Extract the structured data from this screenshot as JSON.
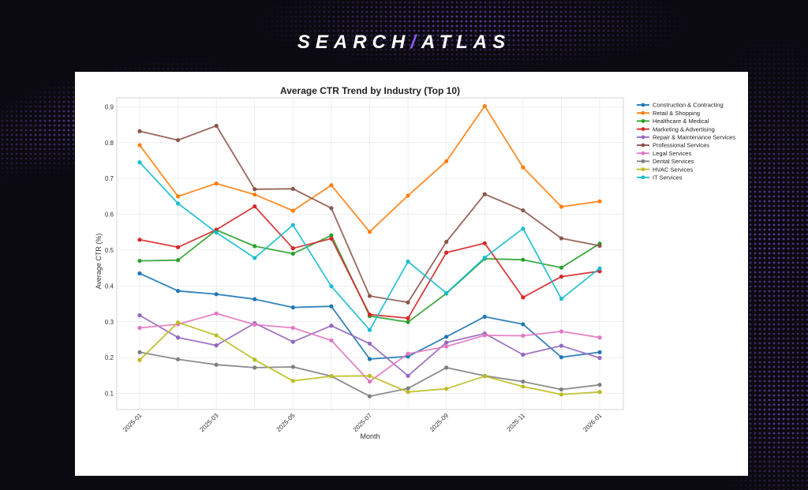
{
  "brand": {
    "part1": "SEARCH",
    "slash": "/",
    "part2": "ATLAS"
  },
  "chart_data": {
    "type": "line",
    "title": "Average CTR Trend by Industry (Top 10)",
    "xlabel": "Month",
    "ylabel": "Average CTR (%)",
    "ylim": [
      0.055,
      0.925
    ],
    "yticks": [
      0.1,
      0.2,
      0.3,
      0.4,
      0.5,
      0.6,
      0.7,
      0.8,
      0.9
    ],
    "x": [
      "2025-01",
      "2025-02",
      "2025-03",
      "2025-04",
      "2025-05",
      "2025-06",
      "2025-07",
      "2025-08",
      "2025-09",
      "2025-10",
      "2025-11",
      "2025-12",
      "2026-01"
    ],
    "xtick_labels": [
      "2025-01",
      "",
      "2025-03",
      "",
      "2025-05",
      "",
      "2025-07",
      "",
      "2025-09",
      "",
      "2025-11",
      "",
      "2026-01"
    ],
    "grid": true,
    "legend_position": "right",
    "series": [
      {
        "name": "Construction & Contracting",
        "color": "#1f77b4",
        "values": [
          0.435,
          0.386,
          0.377,
          0.363,
          0.34,
          0.343,
          0.196,
          0.203,
          0.258,
          0.314,
          0.293,
          0.201,
          0.215
        ]
      },
      {
        "name": "Retail & Shopping",
        "color": "#ff7f0e",
        "values": [
          0.793,
          0.65,
          0.686,
          0.655,
          0.61,
          0.681,
          0.551,
          0.652,
          0.748,
          0.902,
          0.731,
          0.621,
          0.636
        ]
      },
      {
        "name": "Healthcare & Medical",
        "color": "#2ca02c",
        "values": [
          0.47,
          0.472,
          0.556,
          0.511,
          0.49,
          0.541,
          0.316,
          0.299,
          0.379,
          0.476,
          0.473,
          0.451,
          0.518
        ]
      },
      {
        "name": "Marketing & Advertising",
        "color": "#d62728",
        "values": [
          0.529,
          0.508,
          0.557,
          0.622,
          0.505,
          0.532,
          0.32,
          0.31,
          0.493,
          0.519,
          0.368,
          0.426,
          0.441
        ]
      },
      {
        "name": "Repair & Maintenance Services",
        "color": "#9467bd",
        "values": [
          0.318,
          0.256,
          0.234,
          0.296,
          0.244,
          0.289,
          0.239,
          0.149,
          0.242,
          0.267,
          0.208,
          0.233,
          0.199
        ]
      },
      {
        "name": "Professional Services",
        "color": "#8c564b",
        "values": [
          0.832,
          0.807,
          0.847,
          0.67,
          0.671,
          0.617,
          0.372,
          0.354,
          0.523,
          0.656,
          0.611,
          0.533,
          0.512
        ]
      },
      {
        "name": "Legal Services",
        "color": "#e377c2",
        "values": [
          0.283,
          0.293,
          0.323,
          0.292,
          0.283,
          0.248,
          0.133,
          0.211,
          0.231,
          0.262,
          0.261,
          0.273,
          0.256
        ]
      },
      {
        "name": "Dental Services",
        "color": "#7f7f7f",
        "values": [
          0.215,
          0.195,
          0.18,
          0.172,
          0.174,
          0.148,
          0.092,
          0.114,
          0.172,
          0.149,
          0.133,
          0.111,
          0.124
        ]
      },
      {
        "name": "HVAC Services",
        "color": "#bcbd22",
        "values": [
          0.193,
          0.298,
          0.262,
          0.194,
          0.135,
          0.148,
          0.149,
          0.104,
          0.113,
          0.148,
          0.119,
          0.097,
          0.104
        ]
      },
      {
        "name": "IT Services",
        "color": "#17becf",
        "values": [
          0.745,
          0.63,
          0.549,
          0.478,
          0.57,
          0.399,
          0.277,
          0.468,
          0.38,
          0.479,
          0.56,
          0.364,
          0.449
        ]
      }
    ]
  }
}
